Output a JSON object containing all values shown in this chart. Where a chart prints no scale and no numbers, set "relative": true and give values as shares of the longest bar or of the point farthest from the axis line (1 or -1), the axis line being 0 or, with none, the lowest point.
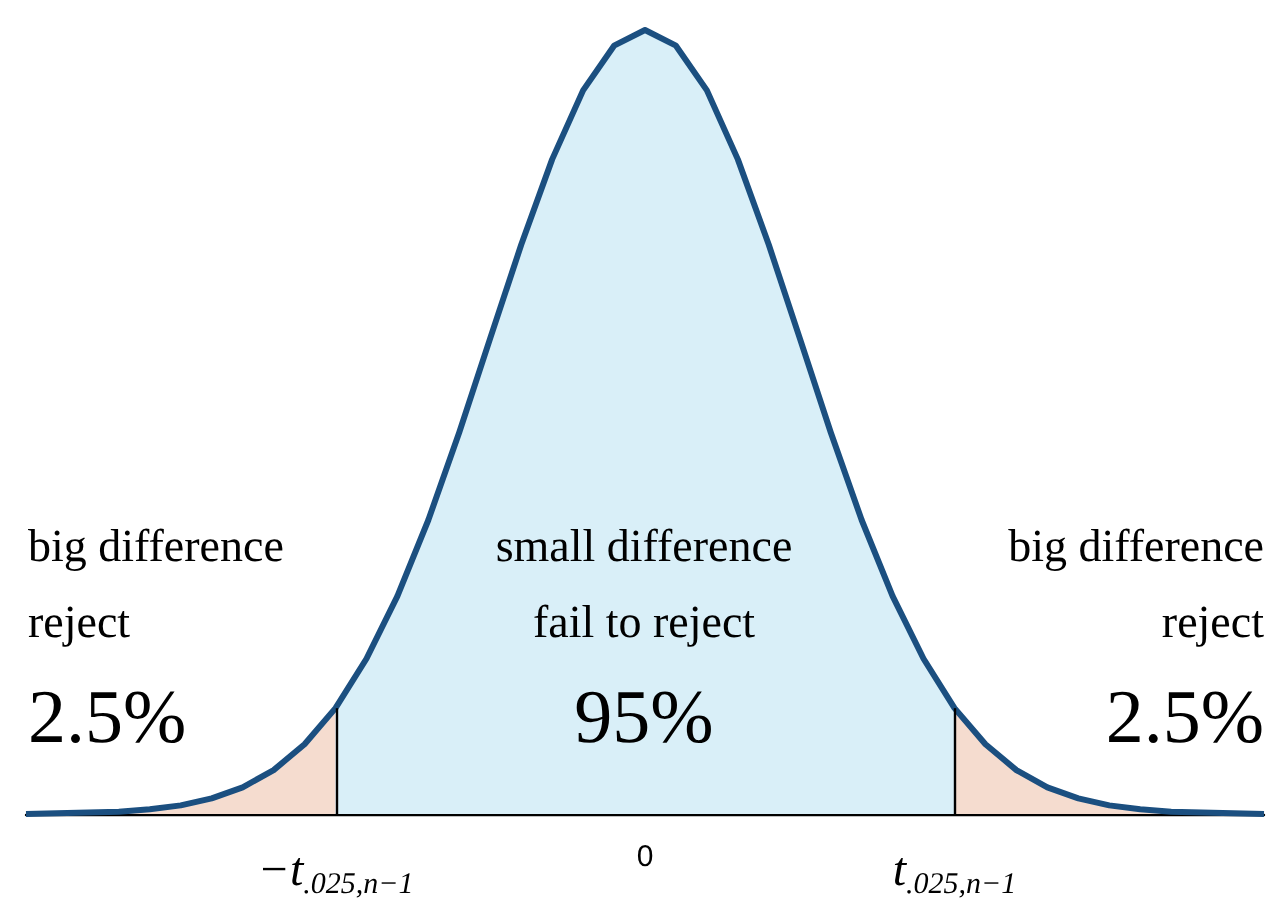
{
  "chart_data": {
    "type": "area",
    "relative": true,
    "grid": false,
    "tick_labels": "x",
    "marker": "none",
    "categories": [
      null,
      null,
      null,
      null,
      null,
      null,
      null,
      null,
      null,
      null,
      "−t$_{.025,n−1}$",
      null,
      null,
      null,
      null,
      null,
      null,
      null,
      null,
      null,
      "0",
      null,
      null,
      null,
      null,
      null,
      null,
      null,
      null,
      null,
      "t$_{.025,n−1}$",
      null,
      null,
      null,
      null,
      null,
      null,
      null,
      null,
      null,
      null
    ],
    "series": [
      {
        "color": "#f5dccf",
        "values": [
          0.0,
          0.001,
          0.002,
          0.003,
          0.006,
          0.011,
          0.02,
          0.034,
          0.056,
          0.089,
          0.135,
          null,
          null,
          null,
          null,
          null,
          null,
          null,
          null,
          null,
          null,
          null,
          null,
          null,
          null,
          null,
          null,
          null,
          null,
          null,
          null,
          null,
          null,
          null,
          null,
          null,
          null,
          null,
          null,
          null,
          null
        ]
      },
      {
        "color": "#d9eff8",
        "values": [
          null,
          null,
          null,
          null,
          null,
          null,
          null,
          null,
          null,
          null,
          0.135,
          0.198,
          0.278,
          0.375,
          0.487,
          0.607,
          0.726,
          0.835,
          0.923,
          0.98,
          1,
          0.98,
          0.923,
          0.835,
          0.726,
          0.607,
          0.487,
          0.375,
          0.278,
          0.198,
          0.135,
          null,
          null,
          null,
          null,
          null,
          null,
          null,
          null,
          null,
          null
        ]
      },
      {
        "color": "#f5dccf",
        "values": [
          null,
          null,
          null,
          null,
          null,
          null,
          null,
          null,
          null,
          null,
          null,
          null,
          null,
          null,
          null,
          null,
          null,
          null,
          null,
          null,
          null,
          null,
          null,
          null,
          null,
          null,
          null,
          null,
          null,
          null,
          0.135,
          0.089,
          0.056,
          0.034,
          0.02,
          0.011,
          0.006,
          0.003,
          0.002,
          0.001,
          0.0
        ]
      },
      {
        "type": "line",
        "color": "#1b4f80",
        "values": [
          0.0,
          0.001,
          0.002,
          0.003,
          0.006,
          0.011,
          0.02,
          0.034,
          0.056,
          0.089,
          0.135,
          0.198,
          0.278,
          0.375,
          0.487,
          0.607,
          0.726,
          0.835,
          0.923,
          0.98,
          1,
          0.98,
          0.923,
          0.835,
          0.726,
          0.607,
          0.487,
          0.375,
          0.278,
          0.198,
          0.135,
          0.089,
          0.056,
          0.034,
          0.02,
          0.011,
          0.006,
          0.003,
          0.002,
          0.001,
          0.0
        ]
      }
    ],
    "ref_lines": [
      {
        "axis": "x",
        "value": "−t$_{.025,n−1}$",
        "color": "#000000"
      },
      {
        "axis": "x",
        "value": "t$_{.025,n−1}$",
        "color": "#000000"
      }
    ],
    "annotations": [
      "big difference\nreject",
      "2.5%",
      "small difference\nfail to reject",
      "95%",
      "big difference\nreject",
      "2.5%"
    ]
  }
}
